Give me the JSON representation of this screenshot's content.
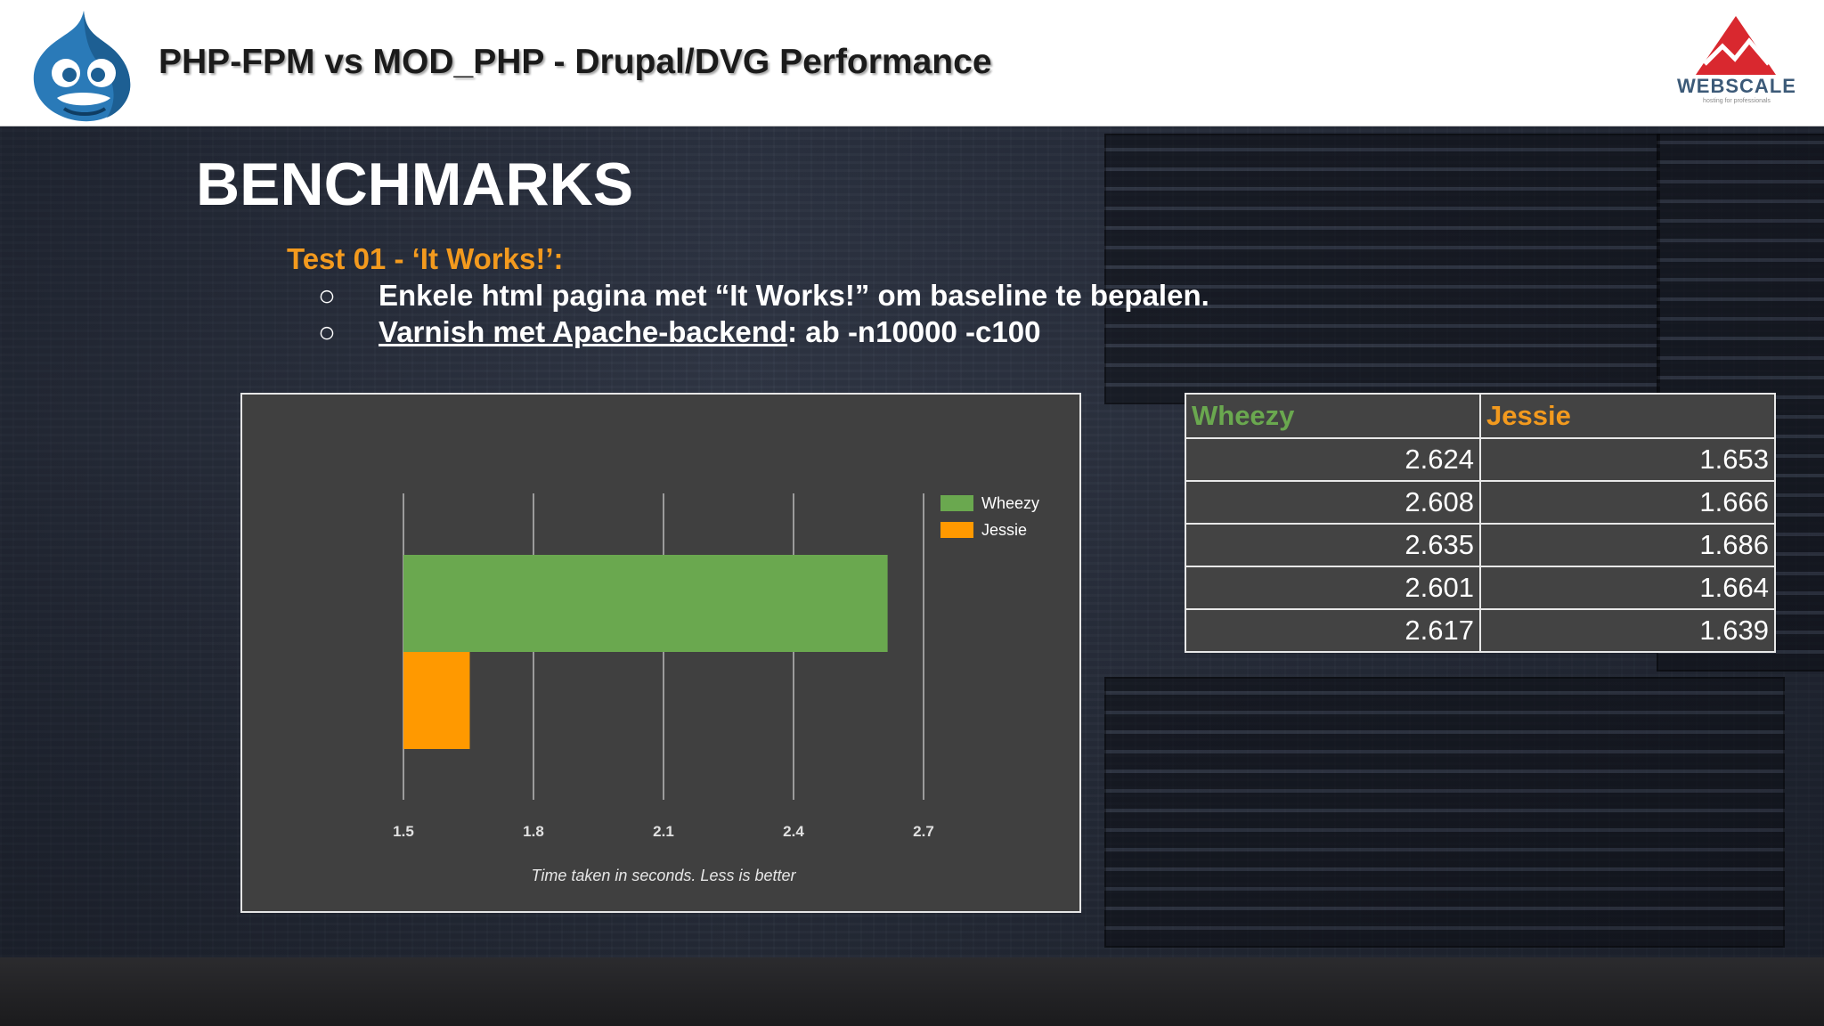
{
  "header": {
    "title": "PHP-FPM vs MOD_PHP - Drupal/DVG Performance",
    "logo_left_icon": "drupal-drop-icon",
    "logo_right": {
      "name": "WEBSCALE",
      "tagline": "hosting for professionals",
      "icon": "mountain-icon"
    }
  },
  "slide": {
    "heading": "BENCHMARKS",
    "test_title": "Test 01 - ‘It Works!’:",
    "bullets": [
      {
        "marker": "○",
        "text": "Enkele html pagina met “It Works!” om baseline te bepalen."
      },
      {
        "marker": "○",
        "link_text": "Varnish met Apache-backend",
        "rest": ": ab -n10000 -c100"
      }
    ]
  },
  "chart_data": {
    "type": "bar",
    "orientation": "horizontal",
    "series": [
      {
        "name": "Wheezy",
        "value": 2.617,
        "color": "#6aa84f"
      },
      {
        "name": "Jessie",
        "value": 1.653,
        "color": "#ff9900"
      }
    ],
    "xlim": [
      1.5,
      2.7
    ],
    "ticks": [
      "1.5",
      "1.8",
      "2.1",
      "2.4",
      "2.7"
    ],
    "xlabel": "Time taken in seconds. Less is better",
    "grid": true,
    "legend": "top-right"
  },
  "table": {
    "headers": [
      {
        "label": "Wheezy",
        "color": "#6aa84f"
      },
      {
        "label": "Jessie",
        "color": "#f39a1e"
      }
    ],
    "rows": [
      [
        "2.624",
        "1.653"
      ],
      [
        "2.608",
        "1.666"
      ],
      [
        "2.635",
        "1.686"
      ],
      [
        "2.601",
        "1.664"
      ],
      [
        "2.617",
        "1.639"
      ]
    ]
  }
}
